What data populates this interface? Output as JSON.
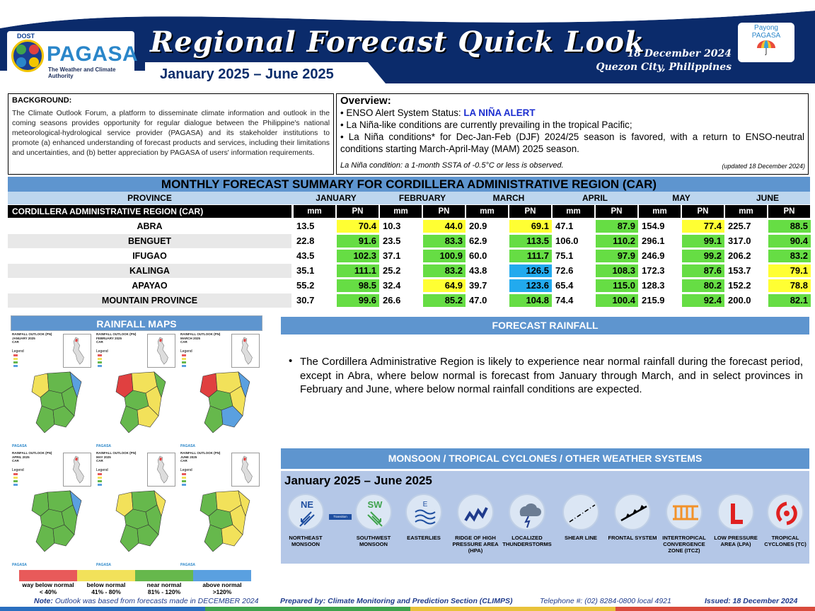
{
  "header": {
    "agency_top": "DOST",
    "agency_name": "PAGASA",
    "agency_tagline": "The Weather and Climate Authority",
    "title": "Regional Forecast Quick Look",
    "period": "January 2025 – June 2025",
    "date": "18 December 2024",
    "place": "Quezon City, Philippines",
    "payong_line1": "Payong",
    "payong_line2": "PAGASA"
  },
  "background": {
    "title": "BACKGROUND:",
    "text": "The Climate Outlook Forum, a platform to disseminate climate information and outlook in the coming seasons provides opportunity for regular dialogue between the Philippine's national meteorological-hydrological service provider (PAGASA) and its stakeholder institutions to promote (a) enhanced understanding of forecast products and services, including their limitations and uncertainties, and (b) better appreciation by PAGASA of users' information requirements."
  },
  "overview": {
    "title": "Overview:",
    "enso_prefix": "• ENSO Alert System Status: ",
    "enso_status": "LA NIÑA ALERT",
    "line2": "• La Niña-like conditions are currently prevailing in the tropical Pacific;",
    "line3": "• La Niña conditions* for Dec-Jan-Feb (DJF) 2024/25 season is favored, with a return to ENSO-neutral conditions starting March-April-May (MAM) 2025 season.",
    "note": "La Niña condition: a 1-month SSTA of -0.5°C or less is observed.",
    "updated": "(updated 18 December 2024)"
  },
  "table": {
    "title": "MONTHLY FORECAST SUMMARY FOR CORDILLERA ADMINISTRATIVE REGION (CAR)",
    "province_header": "PROVINCE",
    "months": [
      "JANUARY",
      "FEBRUARY",
      "MARCH",
      "APRIL",
      "MAY",
      "JUNE"
    ],
    "region_label": "CORDILLERA ADMINISTRATIVE REGION (CAR)",
    "unit_mm": "mm",
    "unit_pn": "PN",
    "rows": [
      {
        "province": "ABRA",
        "mm": [
          "13.5",
          "10.3",
          "20.9",
          "47.1",
          "154.9",
          "225.7"
        ],
        "pn": [
          "70.4",
          "44.0",
          "69.1",
          "87.9",
          "77.4",
          "88.5"
        ],
        "cat": [
          "bn",
          "bn",
          "bn",
          "nn",
          "bn",
          "nn"
        ]
      },
      {
        "province": "BENGUET",
        "mm": [
          "22.8",
          "23.5",
          "62.9",
          "106.0",
          "296.1",
          "317.0"
        ],
        "pn": [
          "91.6",
          "83.3",
          "113.5",
          "110.2",
          "99.1",
          "90.4"
        ],
        "cat": [
          "nn",
          "nn",
          "nn",
          "nn",
          "nn",
          "nn"
        ]
      },
      {
        "province": "IFUGAO",
        "mm": [
          "43.5",
          "37.1",
          "60.0",
          "75.1",
          "246.9",
          "206.2"
        ],
        "pn": [
          "102.3",
          "100.9",
          "111.7",
          "97.9",
          "99.2",
          "83.2"
        ],
        "cat": [
          "nn",
          "nn",
          "nn",
          "nn",
          "nn",
          "nn"
        ]
      },
      {
        "province": "KALINGA",
        "mm": [
          "35.1",
          "25.2",
          "43.8",
          "72.6",
          "172.3",
          "153.7"
        ],
        "pn": [
          "111.1",
          "83.2",
          "126.5",
          "108.3",
          "87.6",
          "79.1"
        ],
        "cat": [
          "nn",
          "nn",
          "an",
          "nn",
          "nn",
          "bn"
        ]
      },
      {
        "province": "APAYAO",
        "mm": [
          "55.2",
          "32.4",
          "39.7",
          "65.4",
          "128.3",
          "152.2"
        ],
        "pn": [
          "98.5",
          "64.9",
          "123.6",
          "115.0",
          "80.2",
          "78.8"
        ],
        "cat": [
          "nn",
          "bn",
          "an",
          "nn",
          "nn",
          "bn"
        ]
      },
      {
        "province": "MOUNTAIN PROVINCE",
        "mm": [
          "30.7",
          "26.6",
          "47.0",
          "74.4",
          "215.9",
          "200.0"
        ],
        "pn": [
          "99.6",
          "85.2",
          "104.8",
          "100.4",
          "92.4",
          "82.1"
        ],
        "cat": [
          "nn",
          "nn",
          "nn",
          "nn",
          "nn",
          "nn"
        ]
      }
    ]
  },
  "category_colors": {
    "bn": "#ffff33",
    "nn": "#66dd44",
    "an": "#22aaee"
  },
  "rainfall_maps": {
    "title": "RAINFALL MAPS",
    "panels": [
      {
        "caption": "RAINFALL OUTLOOK (PN)\nJANUARY 2025\nCAR"
      },
      {
        "caption": "RAINFALL OUTLOOK (PN)\nFEBRUARY 2025\nCAR"
      },
      {
        "caption": "RAINFALL OUTLOOK (PN)\nMARCH 2025\nCAR"
      },
      {
        "caption": "RAINFALL OUTLOOK (PN)\nAPRIL 2025\nCAR"
      },
      {
        "caption": "RAINFALL OUTLOOK (PN)\nMAY 2025\nCAR"
      },
      {
        "caption": "RAINFALL OUTLOOK (PN)\nJUNE 2025\nCAR"
      }
    ],
    "legend_title": "Legend",
    "panel_logo": "PAGASA",
    "legend": [
      {
        "line1": "way below normal",
        "line2": "< 40%",
        "color": "#e85a5a"
      },
      {
        "line1": "below normal",
        "line2": "41% - 80%",
        "color": "#f2e15a"
      },
      {
        "line1": "near normal",
        "line2": "81% - 120%",
        "color": "#66b84c"
      },
      {
        "line1": "above normal",
        "line2": ">120%",
        "color": "#5aa0e0"
      }
    ]
  },
  "forecast_rainfall": {
    "title": "FORECAST RAINFALL",
    "text": "The Cordillera Administrative Region is likely to experience near normal rainfall during the forecast period, except in Abra, where below normal is forecast from January through March, and in select provinces in February and June, where below normal rainfall conditions are expected."
  },
  "monsoon": {
    "title": "MONSOON / TROPICAL CYCLONES / OTHER WEATHER SYSTEMS",
    "period": "January 2025 – June 2025",
    "transition": "Transition",
    "systems": [
      {
        "label": "NORTHEAST MONSOON",
        "icon": "northeast-monsoon-icon",
        "code": "NE"
      },
      {
        "label": "SOUTHWEST MONSOON",
        "icon": "southwest-monsoon-icon",
        "code": "SW"
      },
      {
        "label": "EASTERLIES",
        "icon": "easterlies-icon",
        "code": "E"
      },
      {
        "label": "RIDGE OF HIGH PRESSURE AREA (HPA)",
        "icon": "ridge-hpa-icon",
        "code": ""
      },
      {
        "label": "LOCALIZED THUNDERSTORMS",
        "icon": "thunderstorm-icon",
        "code": ""
      },
      {
        "label": "SHEAR LINE",
        "icon": "shear-line-icon",
        "code": ""
      },
      {
        "label": "FRONTAL SYSTEM",
        "icon": "frontal-system-icon",
        "code": ""
      },
      {
        "label": "INTERTROPICAL CONVERGENCE ZONE (ITCZ)",
        "icon": "itcz-icon",
        "code": ""
      },
      {
        "label": "LOW PRESSURE AREA (LPA)",
        "icon": "lpa-icon",
        "code": "L"
      },
      {
        "label": "TROPICAL CYCLONES (TC)",
        "icon": "tropical-cyclone-icon",
        "code": ""
      }
    ]
  },
  "footer": {
    "note_label": "Note:",
    "note_text": " Outlook was based from forecasts made in DECEMBER 2024",
    "prepared": "Prepared by: Climate Monitoring and Prediction Section (CLIMPS)",
    "telephone": "Telephone #: (02) 8284-0800 local 4921",
    "issued": "Issued: 18 December 2024"
  }
}
